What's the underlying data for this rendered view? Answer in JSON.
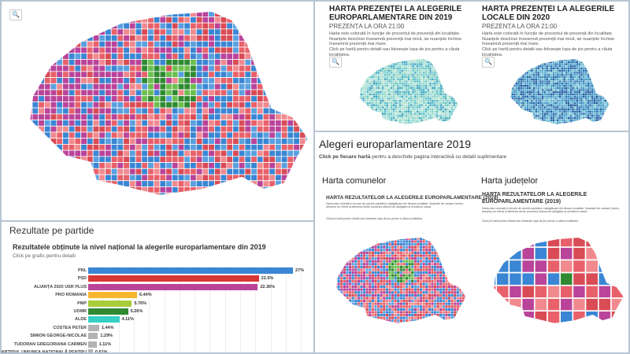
{
  "main_map": {
    "zoom_icon": "search-icon"
  },
  "results": {
    "section_title": "Rezultate pe partide",
    "chart_data": {
      "type": "bar",
      "title": "Rezultatele obținute la nivel național la alegerile europarlamentare din 2019",
      "subtitle": "Click pe grafic pentru detalii",
      "categories": [
        "PNL",
        "PSD",
        "ALIANȚA 2020 USR PLUS",
        "PRO ROMANIA",
        "PMP",
        "UDMR",
        "ALDE",
        "COSTEA PETER",
        "SIMION GEORGE-NICOLAE",
        "TUDORAN GREGORIANA CARMEN",
        "PARTIDUL UNIUNEA NAȚIONALĂ PENTRU"
      ],
      "values": [
        27,
        22.5,
        22.36,
        6.44,
        5.76,
        5.26,
        4.11,
        1.44,
        1.29,
        1.11,
        0.61
      ],
      "labels": [
        "27%",
        "22.5%",
        "22.36%",
        "6.44%",
        "5.76%",
        "5.26%",
        "4.11%",
        "1.44%",
        "1.29%",
        "1.11%",
        "0.61%"
      ],
      "colors": [
        "#3a86d4",
        "#d93636",
        "#b9449a",
        "#f6b72f",
        "#a9cd3a",
        "#2f8a32",
        "#35cfc3",
        "#b3b3b3",
        "#b3b3b3",
        "#b3b3b3",
        "#b3b3b3"
      ],
      "grid": true
    }
  },
  "presence": {
    "left": {
      "title": "HARTA PREZENȚEI LA ALEGERILE EUROPARLAMENTARE DIN 2019",
      "subtitle": "PREZENȚA LA ORA 21:00",
      "desc": "Harta este colorată în funcție de procentul de prezență din localitate. Nuanțele deschise înseamnă prezență mai mică, iar nuanțele închise înseamnă prezență mai mare.",
      "hint": "Click pe hartă pentru detalii sau folosește lupa de jos pentru a căuta localitatea."
    },
    "right": {
      "title": "HARTA PREZENȚEI LA ALEGERILE LOCALE DIN 2020",
      "subtitle": "PREZENȚA LA ORA 21:00",
      "desc": "Harta este colorată în funcție de procentul de prezență din localitate. Nuanțele deschise înseamnă prezență mai mică, iar nuanțele închise înseamnă prezență mai mare.",
      "hint": "Click pe hartă pentru detalii sau folosește lupa de jos pentru a căuta localitatea."
    }
  },
  "euro": {
    "title": "Alegeri europarlamentare 2019",
    "intro_bold": "Click pe fiecare hartă",
    "intro_rest": " pentru a deschide pagina interactivă cu detalii suplimentare",
    "communes": {
      "heading": "Harta comunelor",
      "title": "HARTA REZULTATELOR LA ALEGERILE EUROPARLAMENTARE (2019)",
      "desc": "Harta este colorată în funcție de culorile partidelor câștigătoare din fiecare localitate. Nuanțele de culoare (închis-deschis) se referă la diferența dintre procentul obținut de câștigător și următorul clasat.",
      "hint": "Click pe hartă pentru detalii sau folosește lupa de jos pentru a căuta localitatea."
    },
    "counties": {
      "heading": "Harta județelor",
      "title": "HARTA REZULTATELOR LA ALEGERILE EUROPARLAMENTARE (2019)",
      "desc": "Harta este colorată în funcție de culorile partidelor câștigătoare din fiecare localitate. Nuanțele de culoare (închis-deschis) se referă la diferența dintre procentul obținut de câștigător și următorul clasat.",
      "hint": "Click pe hartă pentru detalii sau folosește lupa de jos pentru a căuta localitatea."
    }
  }
}
